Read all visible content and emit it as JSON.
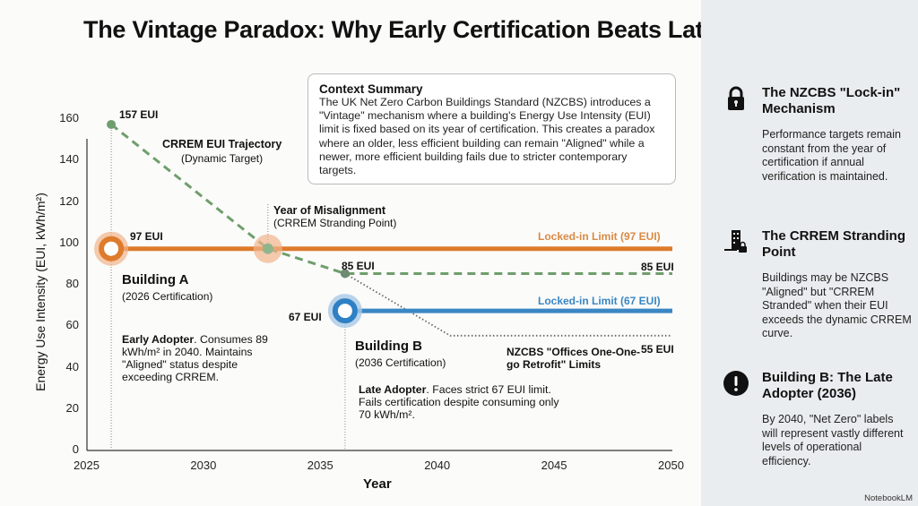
{
  "title": "The Vintage Paradox: Why Early Certification Beats Late Efficiency",
  "context": {
    "heading": "Context Summary",
    "body": "The UK Net Zero Carbon Buildings Standard (NZCBS) introduces a \"Vintage\" mechanism where a building's Energy Use Intensity (EUI) limit is fixed based on its year of certification. This creates a paradox where an older, less efficient building can remain \"Aligned\" while a newer, more efficient building fails due to stricter contemporary targets."
  },
  "sidebar": [
    {
      "icon": "lock-icon",
      "title": "The NZCBS \"Lock-in\" Mechanism",
      "body": "Performance targets remain constant from the year of certification if annual verification is maintained."
    },
    {
      "icon": "building-lock-icon",
      "title": "The CRREM Stranding Point",
      "body": "Buildings may be NZCBS \"Aligned\" but \"CRREM Stranded\" when their EUI exceeds the dynamic CRREM curve."
    },
    {
      "icon": "alert-icon",
      "title": "Building B: The Late Adopter (2036)",
      "body": "By 2040, \"Net Zero\" labels will represent vastly different levels of operational efficiency."
    }
  ],
  "brand": "NotebookLM",
  "chart_data": {
    "type": "line",
    "xlabel": "Year",
    "ylabel": "Energy Use Intensity (EUI, kWh/m²)",
    "xlim": [
      2025,
      2050
    ],
    "ylim": [
      0,
      160
    ],
    "xticks": [
      2025,
      2030,
      2035,
      2040,
      2045,
      2050
    ],
    "yticks": [
      0,
      20,
      40,
      60,
      80,
      100,
      120,
      140,
      160
    ],
    "series": [
      {
        "name": "CRREM EUI Trajectory",
        "color": "#6f9e6c",
        "style": "dashed",
        "points": [
          [
            2026,
            157
          ],
          [
            2032.7,
            97
          ],
          [
            2036,
            85
          ],
          [
            2050,
            85
          ]
        ]
      },
      {
        "name": "Locked-in Limit (97 EUI)",
        "color": "#de7b2c",
        "style": "solid",
        "points": [
          [
            2026,
            97
          ],
          [
            2050,
            97
          ]
        ]
      },
      {
        "name": "Locked-in Limit (67 EUI)",
        "color": "#3a87c4",
        "style": "solid",
        "points": [
          [
            2036,
            67
          ],
          [
            2050,
            67
          ]
        ]
      },
      {
        "name": "NZCBS \"Offices One-go Retrofit\" Limits",
        "color": "#666666",
        "style": "dotted",
        "points": [
          [
            2036,
            85
          ],
          [
            2040.5,
            55
          ],
          [
            2050,
            55
          ]
        ]
      }
    ],
    "annotations": {
      "crrem_start": "157 EUI",
      "crrem_title": "CRREM EUI Trajectory",
      "crrem_sub": "(Dynamic Target)",
      "misalign_title": "Year of Misalignment",
      "misalign_sub": "(CRREM Stranding Point)",
      "a_value": "97 EUI",
      "a_name": "Building A",
      "a_cert": "(2026 Certification)",
      "a_desc_bold": "Early Adopter",
      "a_desc": ". Consumes 89 kWh/m² in 2040. Maintains \"Aligned\" status despite exceeding CRREM.",
      "locked97": "Locked-in Limit (97 EUI)",
      "v85": "85 EUI",
      "v85_end": "85 EUI",
      "b_value": "67 EUI",
      "locked67": "Locked-in Limit (67 EUI)",
      "b_name": "Building B",
      "b_cert": "(2036 Certification)",
      "b_desc_bold": "Late Adopter",
      "b_desc": ". Faces strict 67 EUI limit. Fails certification despite consuming only 70 kWh/m².",
      "nzcbs": "NZCBS \"Offices One-One-go Retrofit\" Limits",
      "v55": "55 EUI"
    }
  }
}
